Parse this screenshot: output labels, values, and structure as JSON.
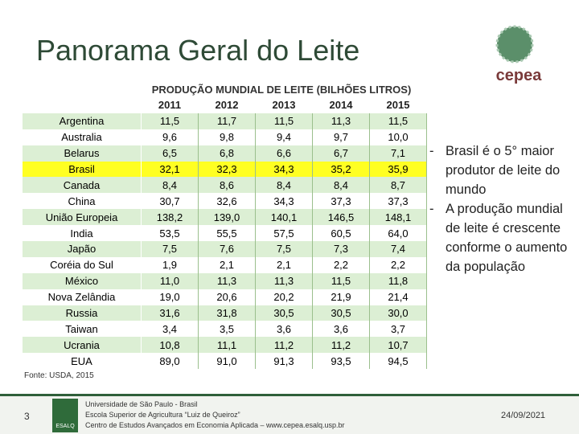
{
  "header": {
    "title": "Panorama Geral do Leite",
    "logo": "cepea"
  },
  "table": {
    "caption": "PRODUÇÃO MUNDIAL DE LEITE (BILHÕES LITROS)",
    "columns": [
      "2011",
      "2012",
      "2013",
      "2014",
      "2015"
    ],
    "highlight_row": 3,
    "rows": [
      [
        "Argentina",
        "11,5",
        "11,7",
        "11,5",
        "11,3",
        "11,5"
      ],
      [
        "Australia",
        "9,6",
        "9,8",
        "9,4",
        "9,7",
        "10,0"
      ],
      [
        "Belarus",
        "6,5",
        "6,8",
        "6,6",
        "6,7",
        "7,1"
      ],
      [
        "Brasil",
        "32,1",
        "32,3",
        "34,3",
        "35,2",
        "35,9"
      ],
      [
        "Canada",
        "8,4",
        "8,6",
        "8,4",
        "8,4",
        "8,7"
      ],
      [
        "China",
        "30,7",
        "32,6",
        "34,3",
        "37,3",
        "37,3"
      ],
      [
        "União Europeia",
        "138,2",
        "139,0",
        "140,1",
        "146,5",
        "148,1"
      ],
      [
        "India",
        "53,5",
        "55,5",
        "57,5",
        "60,5",
        "64,0"
      ],
      [
        "Japão",
        "7,5",
        "7,6",
        "7,5",
        "7,3",
        "7,4"
      ],
      [
        "Coréia do Sul",
        "1,9",
        "2,1",
        "2,1",
        "2,2",
        "2,2"
      ],
      [
        "México",
        "11,0",
        "11,3",
        "11,3",
        "11,5",
        "11,8"
      ],
      [
        "Nova Zelândia",
        "19,0",
        "20,6",
        "20,2",
        "21,9",
        "21,4"
      ],
      [
        "Russia",
        "31,6",
        "31,8",
        "30,5",
        "30,5",
        "30,0"
      ],
      [
        "Taiwan",
        "3,4",
        "3,5",
        "3,6",
        "3,6",
        "3,7"
      ],
      [
        "Ucrania",
        "10,8",
        "11,1",
        "11,2",
        "11,2",
        "10,7"
      ],
      [
        "EUA",
        "89,0",
        "91,0",
        "91,3",
        "93,5",
        "94,5"
      ]
    ],
    "source": "Fonte: USDA, 2015"
  },
  "bullets": [
    "Brasil é o 5° maior produtor de leite do mundo",
    "A produção mundial de leite é crescente conforme o aumento da população"
  ],
  "footer": {
    "page": "3",
    "logo": "ESALQ",
    "lines": [
      "Universidade de São Paulo - Brasil",
      "Escola Superior de Agricultura “Luiz de Queiroz”",
      "Centro de Estudos Avançados em Economia Aplicada – www.cepea.esalq.usp.br"
    ],
    "date": "24/09/2021"
  }
}
